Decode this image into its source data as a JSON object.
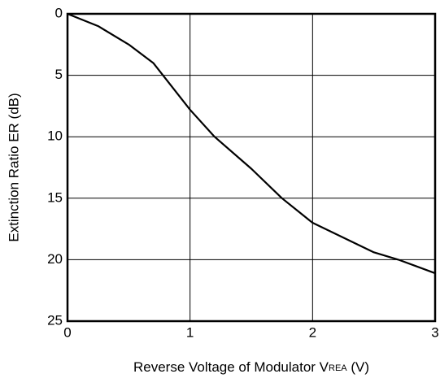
{
  "chart_data": {
    "type": "line",
    "x_label": {
      "text": "Reverse Voltage of Modulator  V",
      "subscript": "REA",
      "suffix": " (V)"
    },
    "y_label": "Extinction Ratio  ER (dB)",
    "x": [
      0,
      0.25,
      0.5,
      0.7,
      1.0,
      1.2,
      1.5,
      1.75,
      2.0,
      2.5,
      2.7,
      3.0
    ],
    "series": [
      {
        "color": "#000000",
        "values": [
          0,
          1.0,
          2.5,
          4.0,
          7.8,
          10.0,
          12.6,
          15.0,
          17.0,
          19.4,
          20.0,
          21.1
        ]
      }
    ],
    "xlim": [
      0,
      3
    ],
    "xticks": [
      0,
      1,
      2,
      3
    ],
    "ylim": [
      0,
      25
    ],
    "yticks": [
      0,
      5,
      10,
      15,
      20,
      25
    ],
    "y_inverted": true,
    "grid": true
  }
}
